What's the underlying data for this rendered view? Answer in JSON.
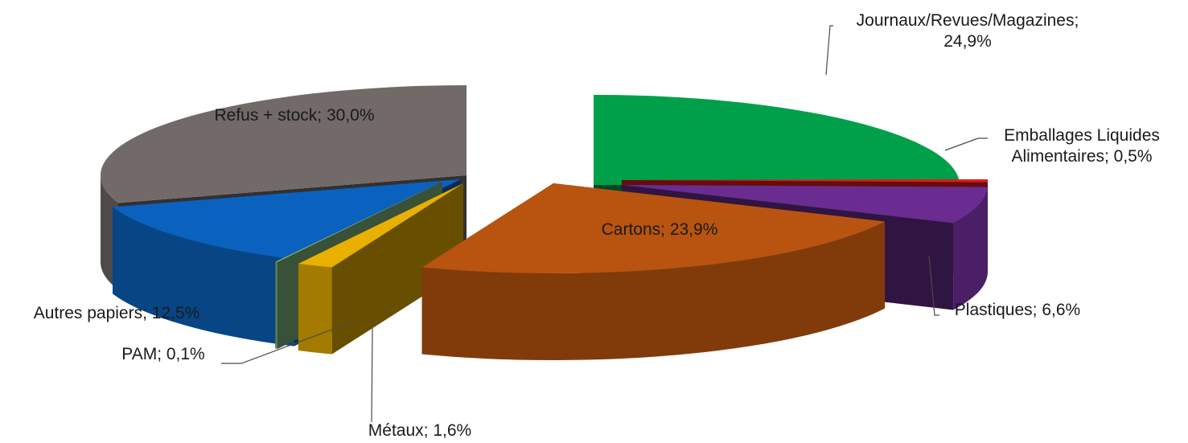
{
  "chart_data": {
    "type": "pie",
    "style": "3d-exploded",
    "title": "",
    "slices": [
      {
        "name": "Journaux/Revues/Magazines",
        "value": 24.9,
        "label_lines": [
          "Journaux/Revues/Magazines;",
          "24,9%"
        ],
        "color": "#00a04a"
      },
      {
        "name": "Emballages Liquides Alimentaires",
        "value": 0.5,
        "label_lines": [
          "Emballages  Liquides",
          "Alimentaires; 0,5%"
        ],
        "color": "#e31b1b"
      },
      {
        "name": "Plastiques",
        "value": 6.6,
        "label_lines": [
          "Plastiques; 6,6%"
        ],
        "color": "#6a2c91"
      },
      {
        "name": "Cartons",
        "value": 23.9,
        "label_lines": [
          "Cartons; 23,9%"
        ],
        "color": "#b8540f"
      },
      {
        "name": "Métaux",
        "value": 1.6,
        "label_lines": [
          "Métaux; 1,6%"
        ],
        "color": "#e8b000"
      },
      {
        "name": "PAM",
        "value": 0.1,
        "label_lines": [
          "PAM; 0,1%"
        ],
        "color": "#7fb27f"
      },
      {
        "name": "Autres papiers",
        "value": 12.5,
        "label_lines": [
          "Autres papiers; 12,5%"
        ],
        "color": "#0a62be"
      },
      {
        "name": "Refus + stock",
        "value": 30.0,
        "label_lines": [
          "Refus + stock; 30,0%"
        ],
        "color": "#716a69"
      }
    ]
  }
}
